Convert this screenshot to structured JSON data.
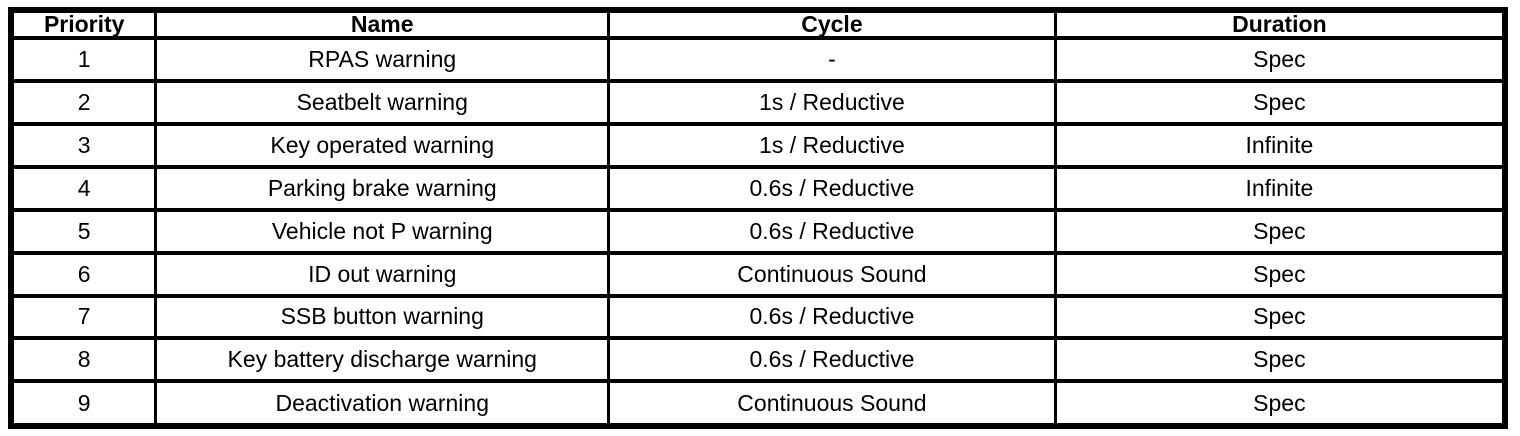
{
  "table": {
    "columns": [
      "Priority",
      "Name",
      "Cycle",
      "Duration"
    ],
    "rows": [
      [
        "1",
        "RPAS warning",
        "-",
        "Spec"
      ],
      [
        "2",
        "Seatbelt warning",
        "1s / Reductive",
        "Spec"
      ],
      [
        "3",
        "Key operated warning",
        "1s / Reductive",
        "Infinite"
      ],
      [
        "4",
        "Parking brake warning",
        "0.6s / Reductive",
        "Infinite"
      ],
      [
        "5",
        "Vehicle not P warning",
        "0.6s / Reductive",
        "Spec"
      ],
      [
        "6",
        "ID out warning",
        "Continuous Sound",
        "Spec"
      ],
      [
        "7",
        "SSB button warning",
        "0.6s / Reductive",
        "Spec"
      ],
      [
        "8",
        "Key battery discharge warning",
        "0.6s / Reductive",
        "Spec"
      ],
      [
        "9",
        "Deactivation warning",
        "Continuous Sound",
        "Spec"
      ]
    ],
    "colors": {
      "border": "#000000",
      "background": "#ffffff",
      "text": "#000000"
    }
  }
}
